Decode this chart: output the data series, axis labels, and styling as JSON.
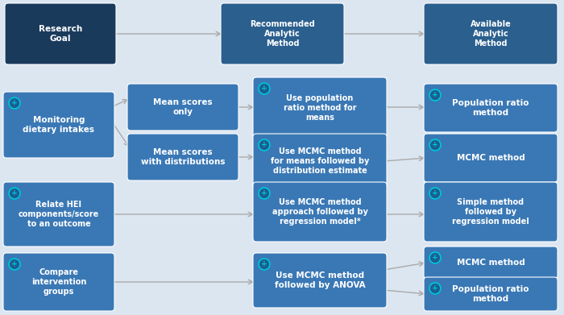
{
  "bg_color": "#dce6f0",
  "colors": {
    "dark": "#1a3a5c",
    "mid": "#2b5f8e",
    "light": "#3a78b5"
  },
  "plus_color": "#00bcd4",
  "boxes": [
    {
      "id": "research_goal",
      "col": 0,
      "row": 0,
      "text": "Research\nGoal",
      "color": "dark",
      "plus": false,
      "span": 1
    },
    {
      "id": "rec_method",
      "col": 2,
      "row": 0,
      "text": "Recommended\nAnalytic\nMethod",
      "color": "mid",
      "plus": false,
      "span": 1
    },
    {
      "id": "avail_method",
      "col": 3,
      "row": 0,
      "text": "Available\nAnalytic\nMethod",
      "color": "mid",
      "plus": false,
      "span": 1
    },
    {
      "id": "monitor",
      "col": 0,
      "row": 1,
      "text": "Monitoring\ndietary intakes",
      "color": "light",
      "plus": true,
      "span": 2
    },
    {
      "id": "mean_only",
      "col": 1,
      "row": 1,
      "text": "Mean scores\nonly",
      "color": "light",
      "plus": false,
      "span": 1
    },
    {
      "id": "pop_ratio_meth",
      "col": 2,
      "row": 1,
      "text": "Use population\nratio method for\nmeans",
      "color": "light",
      "plus": true,
      "span": 1
    },
    {
      "id": "pop_ratio_res",
      "col": 3,
      "row": 1,
      "text": "Population ratio\nmethod",
      "color": "light",
      "plus": true,
      "span": 1
    },
    {
      "id": "mean_dist",
      "col": 1,
      "row": 2,
      "text": "Mean scores\nwith distributions",
      "color": "light",
      "plus": false,
      "span": 1
    },
    {
      "id": "mcmc_dist",
      "col": 2,
      "row": 2,
      "text": "Use MCMC method\nfor means followed by\ndistribution estimate",
      "color": "light",
      "plus": true,
      "span": 1
    },
    {
      "id": "mcmc_res",
      "col": 3,
      "row": 2,
      "text": "MCMC method",
      "color": "light",
      "plus": true,
      "span": 1
    },
    {
      "id": "relate_hei",
      "col": 0,
      "row": 3,
      "text": "Relate HEI\ncomponents/score\nto an outcome",
      "color": "light",
      "plus": true,
      "span": 1
    },
    {
      "id": "mcmc_regr",
      "col": 2,
      "row": 3,
      "text": "Use MCMC method\napproach followed by\nregression model*",
      "color": "light",
      "plus": true,
      "span": 1
    },
    {
      "id": "simple_regr",
      "col": 3,
      "row": 3,
      "text": "Simple method\nfollowed by\nregression model",
      "color": "light",
      "plus": true,
      "span": 1
    },
    {
      "id": "compare",
      "col": 0,
      "row": 4,
      "text": "Compare\nintervention\ngroups",
      "color": "light",
      "plus": true,
      "span": 1
    },
    {
      "id": "mcmc_anova",
      "col": 2,
      "row": 4,
      "text": "Use MCMC method\nfollowed by ANOVA",
      "color": "light",
      "plus": true,
      "span": 1
    },
    {
      "id": "mcmc2",
      "col": 3,
      "row": 4,
      "text": "MCMC method",
      "color": "light",
      "plus": true,
      "span": 1
    },
    {
      "id": "pop_ratio2",
      "col": 3,
      "row": 5,
      "text": "Population ratio\nmethod",
      "color": "light",
      "plus": true,
      "span": 1
    }
  ]
}
